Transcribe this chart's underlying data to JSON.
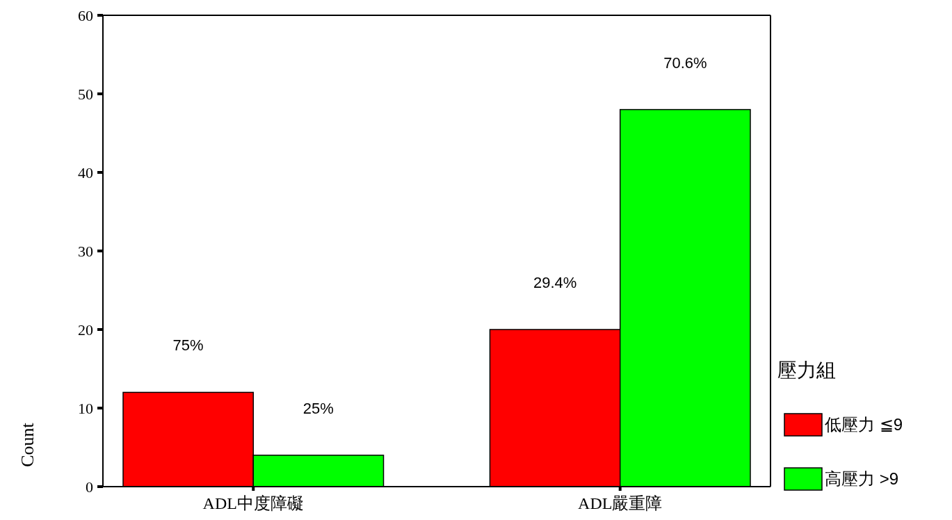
{
  "chart_data": {
    "type": "bar",
    "ylabel": "Count",
    "legend_title": "壓力組",
    "categories": [
      "ADL中度障礙",
      "ADL嚴重障"
    ],
    "series": [
      {
        "name": "低壓力 ≦9",
        "color": "#ff0000",
        "values": [
          12,
          20
        ]
      },
      {
        "name": "高壓力 >9",
        "color": "#00ff00",
        "values": [
          4,
          48
        ]
      }
    ],
    "annotations": [
      "75%",
      "25%",
      "29.4%",
      "70.6%"
    ],
    "ylim": [
      0,
      60
    ],
    "yticks": [
      0,
      10,
      20,
      30,
      40,
      50,
      60
    ],
    "grid": false,
    "legend": "right"
  }
}
